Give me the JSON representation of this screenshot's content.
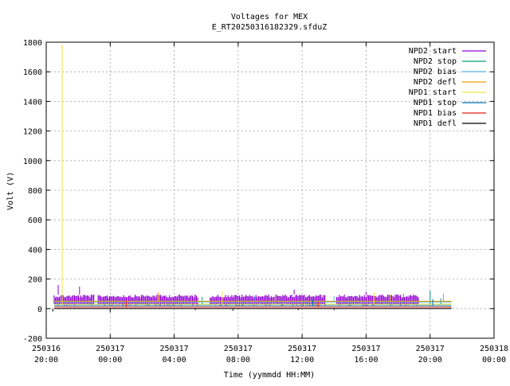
{
  "chart_data": {
    "type": "line",
    "title": "Voltages for MEX",
    "subtitle": "E_RT20250316182329.sfduZ",
    "xlabel": "Time (yymmdd HH:MM)",
    "ylabel": "Volt (V)",
    "xlim": [
      "2025-03-16 20:00",
      "2025-03-18 00:00"
    ],
    "ylim": [
      -200,
      1800
    ],
    "grid": true,
    "legend_position": "top-right",
    "yticks": [
      -200,
      0,
      200,
      400,
      600,
      800,
      1000,
      1200,
      1400,
      1600,
      1800
    ],
    "xticks": [
      {
        "line1": "250316",
        "line2": "20:00"
      },
      {
        "line1": "250317",
        "line2": "00:00"
      },
      {
        "line1": "250317",
        "line2": "04:00"
      },
      {
        "line1": "250317",
        "line2": "08:00"
      },
      {
        "line1": "250317",
        "line2": "12:00"
      },
      {
        "line1": "250317",
        "line2": "16:00"
      },
      {
        "line1": "250317",
        "line2": "20:00"
      },
      {
        "line1": "250318",
        "line2": "00:00"
      }
    ],
    "segments": [
      [
        "2025-03-16 20:30",
        "2025-03-16 23:00"
      ],
      [
        "2025-03-16 23:15",
        "2025-03-17 05:30"
      ],
      [
        "2025-03-17 06:15",
        "2025-03-17 13:30"
      ],
      [
        "2025-03-17 14:10",
        "2025-03-17 19:20"
      ]
    ],
    "data_end": "2025-03-17 21:20",
    "series": [
      {
        "name": "NPD2 start",
        "color": "#9400d3",
        "band": [
          20,
          95
        ],
        "spikes": [
          {
            "x": "2025-03-16 20:45",
            "y": 160
          },
          {
            "x": "2025-03-16 22:05",
            "y": 150
          },
          {
            "x": "2025-03-17 11:30",
            "y": 130
          },
          {
            "x": "2025-03-17 16:00",
            "y": 115
          }
        ]
      },
      {
        "name": "NPD2 stop",
        "color": "#009e73",
        "baseline": 30,
        "spikes": [
          {
            "x": "2025-03-17 05:45",
            "y": 80
          },
          {
            "x": "2025-03-17 18:20",
            "y": 100
          },
          {
            "x": "2025-03-17 20:00",
            "y": 120
          },
          {
            "x": "2025-03-17 20:40",
            "y": 70
          }
        ]
      },
      {
        "name": "NPD2 bias",
        "color": "#56b4e9",
        "baseline": 45,
        "spikes": [
          {
            "x": "2025-03-17 09:00",
            "y": 90
          },
          {
            "x": "2025-03-17 14:00",
            "y": 85
          },
          {
            "x": "2025-03-17 20:50",
            "y": 100
          }
        ]
      },
      {
        "name": "NPD2 defl",
        "color": "#e69f00",
        "baseline": 50,
        "spikes": [
          {
            "x": "2025-03-17 03:00",
            "y": 110
          },
          {
            "x": "2025-03-17 10:20",
            "y": 100
          },
          {
            "x": "2025-03-17 17:30",
            "y": 95
          }
        ]
      },
      {
        "name": "NPD1 start",
        "color": "#f0e442",
        "baseline": 30,
        "spikes": [
          {
            "x": "2025-03-16 21:00",
            "y": 1780
          },
          {
            "x": "2025-03-17 07:00",
            "y": 120
          },
          {
            "x": "2025-03-17 16:30",
            "y": 110
          }
        ]
      },
      {
        "name": "NPD1 stop",
        "color": "#0072b2",
        "baseline": 20,
        "spikes": [
          {
            "x": "2025-03-17 12:40",
            "y": 60
          },
          {
            "x": "2025-03-17 20:10",
            "y": 65
          }
        ]
      },
      {
        "name": "NPD1 bias",
        "color": "#e51e10",
        "baseline": 10,
        "spikes": [
          {
            "x": "2025-03-17 01:00",
            "y": 50
          },
          {
            "x": "2025-03-17 13:00",
            "y": 45
          }
        ]
      },
      {
        "name": "NPD1 defl",
        "color": "#000000",
        "baseline": 0,
        "spikes": [
          {
            "x": "2025-03-16 20:25",
            "y": -20
          },
          {
            "x": "2025-03-17 00:00",
            "y": -25
          },
          {
            "x": "2025-03-17 05:20",
            "y": -10
          },
          {
            "x": "2025-03-17 07:40",
            "y": -15
          },
          {
            "x": "2025-03-17 11:45",
            "y": -10
          },
          {
            "x": "2025-03-17 14:00",
            "y": -10
          }
        ]
      }
    ]
  }
}
